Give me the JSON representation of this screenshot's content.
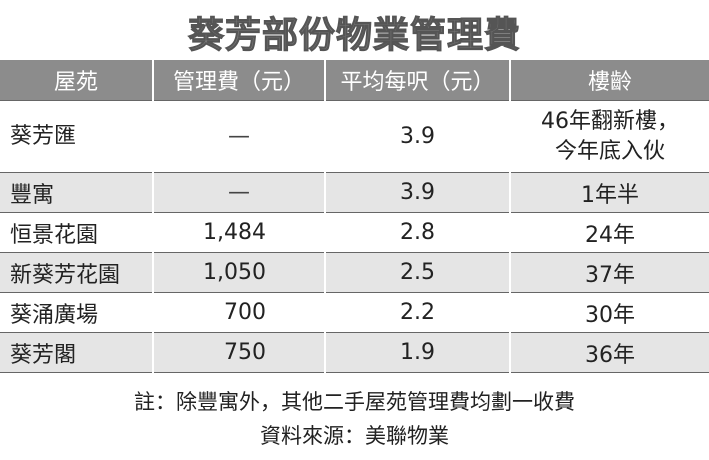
{
  "header": {
    "title": "葵芳部份物業管理費"
  },
  "table": {
    "columns": [
      "屋苑",
      "管理費（元）",
      "平均每呎（元）",
      "樓齡"
    ],
    "rows": [
      [
        "葵芳匯",
        "—",
        "3.9",
        [
          "46年翻新樓，",
          "今年底入伙"
        ]
      ],
      [
        "豐寓",
        "—",
        "3.9",
        "1年半"
      ],
      [
        "恒景花園",
        "1,484",
        "2.8",
        "24年"
      ],
      [
        "新葵芳花園",
        "1,050",
        "2.5",
        "37年"
      ],
      [
        "葵涌廣場",
        "700",
        "2.2",
        "30年"
      ],
      [
        "葵芳閣",
        "750",
        "1.9",
        "36年"
      ]
    ]
  },
  "notes": [
    "註：除豐寓外，其他二手屋苑管理費均劃一收費",
    "資料來源：美聯物業"
  ]
}
